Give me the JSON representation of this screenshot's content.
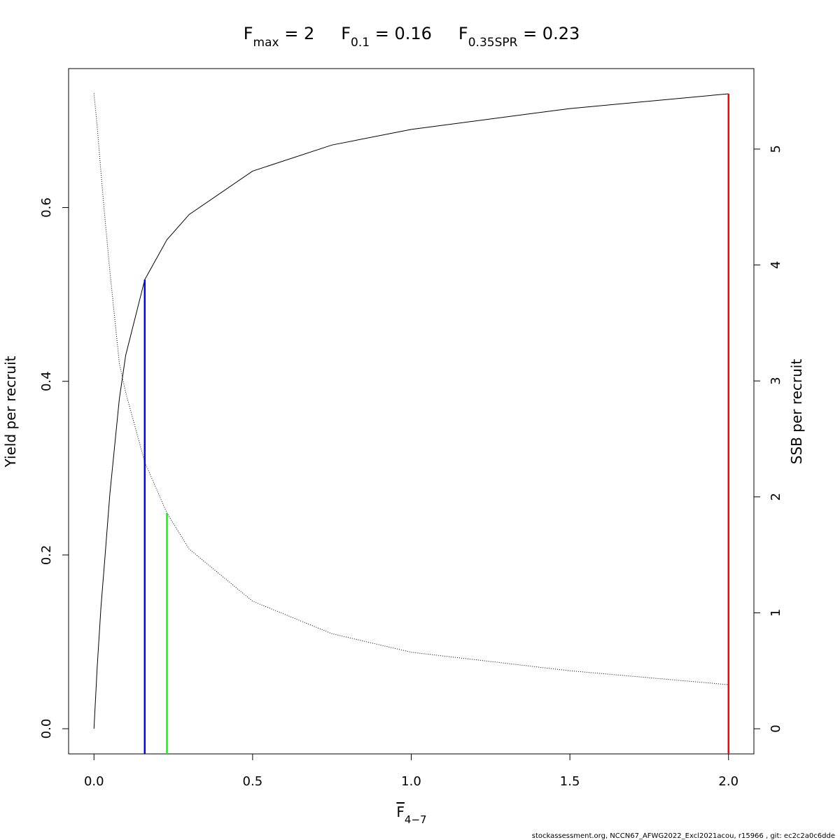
{
  "chart_data": {
    "type": "line",
    "title": [
      {
        "text": "F",
        "sub": "max",
        "tail": " = 2"
      },
      {
        "text": "F",
        "sub": "0.1",
        "tail": " = 0.16"
      },
      {
        "text": "F",
        "sub": "0.35SPR",
        "tail": " = 0.23"
      }
    ],
    "xlabel": {
      "text": "F",
      "sub": "4−7"
    },
    "ylabel": "Yield per recruit",
    "y2label": "SSB per recruit",
    "footnote": "stockassessment.org, NCCN67_AFWG2022_Excl2021acou, r15966 , git: ec2c2a0c6dde",
    "x": [
      0,
      0.01,
      0.022,
      0.033,
      0.05,
      0.08,
      0.1,
      0.16,
      0.23,
      0.3,
      0.5,
      0.75,
      1,
      1.5,
      2
    ],
    "series": [
      {
        "color": "#000000",
        "dash": "solid",
        "axis": "y",
        "values": [
          0,
          0.07,
          0.14,
          0.19,
          0.27,
          0.38,
          0.43,
          0.517,
          0.563,
          0.592,
          0.642,
          0.672,
          0.69,
          0.714,
          0.731
        ]
      },
      {
        "color": "#000000",
        "dash": "dotted",
        "axis": "y2",
        "values": [
          5.48,
          5.2,
          4.8,
          4.45,
          3.95,
          3.15,
          2.9,
          2.3,
          1.86,
          1.55,
          1.1,
          0.82,
          0.66,
          0.5,
          0.38
        ]
      }
    ],
    "reference_lines": [
      {
        "x": 0.16,
        "top": 0.517,
        "axis": "y",
        "color": "#0000ff"
      },
      {
        "x": 0.23,
        "top": 1.86,
        "axis": "y2",
        "color": "#00ff00"
      },
      {
        "x": 2,
        "top": 0.731,
        "axis": "y",
        "color": "#ff0000"
      }
    ],
    "xlim": [
      -0.08,
      2.08
    ],
    "ylim": [
      -0.029,
      0.76
    ],
    "y2lim": [
      -0.217,
      5.694
    ],
    "xticks": [
      {
        "value": 0,
        "label": "0.0"
      },
      {
        "value": 0.5,
        "label": "0.5"
      },
      {
        "value": 1,
        "label": "1.0"
      },
      {
        "value": 1.5,
        "label": "1.5"
      },
      {
        "value": 2,
        "label": "2.0"
      }
    ],
    "yticks": [
      {
        "value": 0,
        "label": "0.0"
      },
      {
        "value": 0.2,
        "label": "0.2"
      },
      {
        "value": 0.4,
        "label": "0.4"
      },
      {
        "value": 0.6,
        "label": "0.6"
      }
    ],
    "y2ticks": [
      0,
      1,
      2,
      3,
      4,
      5
    ],
    "grid": false
  }
}
